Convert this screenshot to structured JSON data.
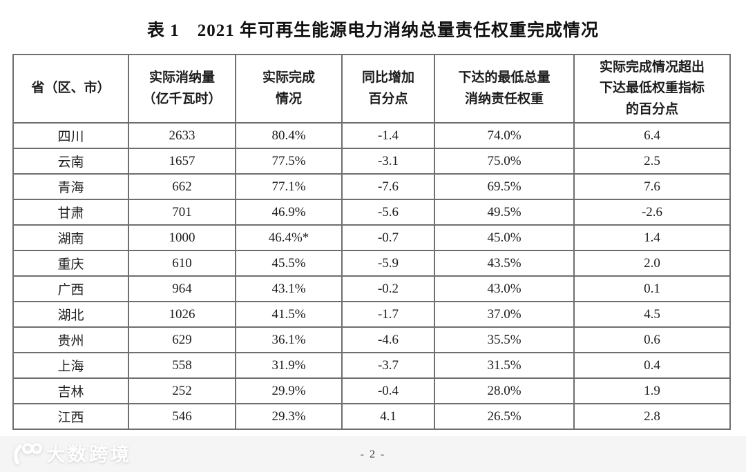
{
  "title": "表 1　2021 年可再生能源电力消纳总量责任权重完成情况",
  "table": {
    "headers": [
      "省（区、市）",
      "实际消纳量\n（亿千瓦时）",
      "实际完成\n情况",
      "同比增加\n百分点",
      "下达的最低总量\n消纳责任权重",
      "实际完成情况超出\n下达最低权重指标\n的百分点"
    ],
    "rows": [
      [
        "四川",
        "2633",
        "80.4%",
        "-1.4",
        "74.0%",
        "6.4"
      ],
      [
        "云南",
        "1657",
        "77.5%",
        "-3.1",
        "75.0%",
        "2.5"
      ],
      [
        "青海",
        "662",
        "77.1%",
        "-7.6",
        "69.5%",
        "7.6"
      ],
      [
        "甘肃",
        "701",
        "46.9%",
        "-5.6",
        "49.5%",
        "-2.6"
      ],
      [
        "湖南",
        "1000",
        "46.4%*",
        "-0.7",
        "45.0%",
        "1.4"
      ],
      [
        "重庆",
        "610",
        "45.5%",
        "-5.9",
        "43.5%",
        "2.0"
      ],
      [
        "广西",
        "964",
        "43.1%",
        "-0.2",
        "43.0%",
        "0.1"
      ],
      [
        "湖北",
        "1026",
        "41.5%",
        "-1.7",
        "37.0%",
        "4.5"
      ],
      [
        "贵州",
        "629",
        "36.1%",
        "-4.6",
        "35.5%",
        "0.6"
      ],
      [
        "上海",
        "558",
        "31.9%",
        "-3.7",
        "31.5%",
        "0.4"
      ],
      [
        "吉林",
        "252",
        "29.9%",
        "-0.4",
        "28.0%",
        "1.9"
      ],
      [
        "江西",
        "546",
        "29.3%",
        "4.1",
        "26.5%",
        "2.8"
      ]
    ]
  },
  "footer": {
    "page_number": "- 2 -"
  },
  "watermark": {
    "logo": "100-goggles-logo",
    "text": "大数跨境",
    "text_color": "#ffffff"
  },
  "colors": {
    "table_border": "#6e6e6e",
    "text": "#1c1c1c",
    "footer_background": "#f5f5f5"
  }
}
